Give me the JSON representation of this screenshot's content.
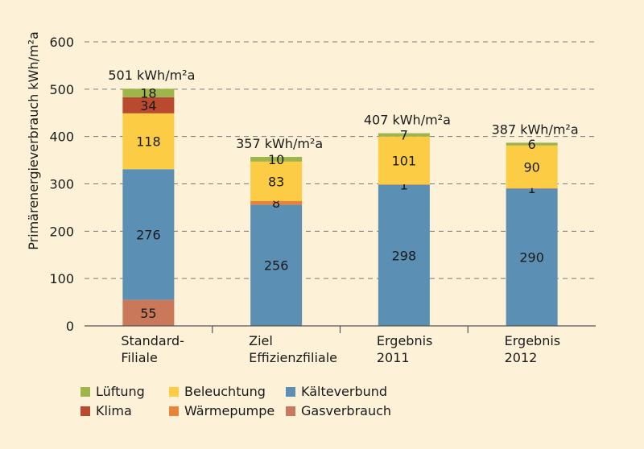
{
  "chart_data": {
    "type": "bar",
    "stacked": true,
    "ylabel": "Primärenergieverbrauch kWh/m²a",
    "ylim": [
      0,
      600
    ],
    "yticks": [
      "0",
      "100",
      "200",
      "300",
      "400",
      "500",
      "600"
    ],
    "grid": "horizontal dashed",
    "categories": [
      [
        "Standard-",
        "Filiale"
      ],
      [
        "Ziel",
        "Effizienzfiliale"
      ],
      [
        "Ergebnis",
        "2011"
      ],
      [
        "Ergebnis",
        "2012"
      ]
    ],
    "totals": [
      "501 kWh/m²a",
      "357 kWh/m²a",
      "407 kWh/m²a",
      "387 kWh/m²a"
    ],
    "series": [
      {
        "name": "Gasverbrauch",
        "color": "#c9785a",
        "values": [
          55,
          0,
          0,
          0
        ]
      },
      {
        "name": "Kälteverbund",
        "color": "#5b8fb3",
        "values": [
          276,
          256,
          298,
          290
        ]
      },
      {
        "name": "Wärmepumpe",
        "color": "#e8843a",
        "values": [
          0,
          8,
          1,
          1
        ]
      },
      {
        "name": "Beleuchtung",
        "color": "#fccd44",
        "values": [
          118,
          83,
          101,
          90
        ]
      },
      {
        "name": "Klima",
        "color": "#b94a30",
        "values": [
          34,
          0,
          0,
          0
        ]
      },
      {
        "name": "Lüftung",
        "color": "#9db54a",
        "values": [
          18,
          10,
          7,
          6
        ]
      }
    ],
    "legend_position": "bottom"
  }
}
